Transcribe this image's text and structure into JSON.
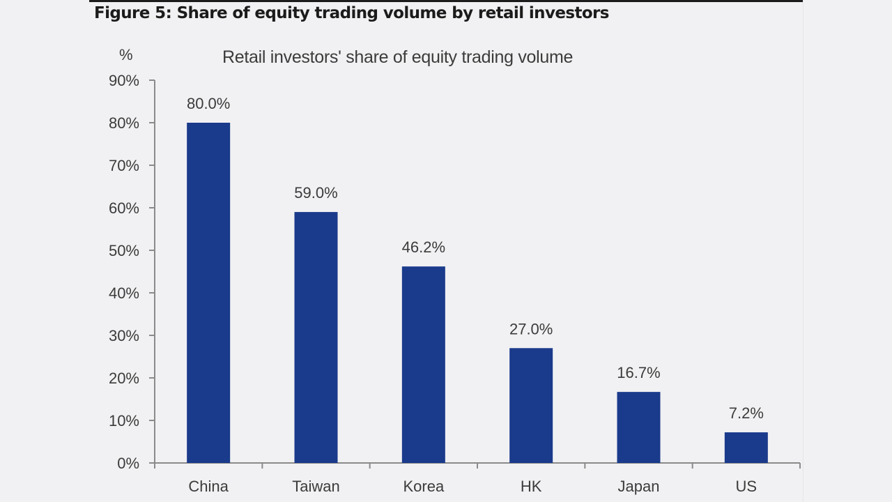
{
  "figure": {
    "title": "Figure 5: Share of equity trading volume by retail investors"
  },
  "chart_data": {
    "type": "bar",
    "title": "Retail investors' share of equity trading volume",
    "xlabel": "",
    "ylabel": "%",
    "categories": [
      "China",
      "Taiwan",
      "Korea",
      "HK",
      "Japan",
      "US"
    ],
    "values": [
      80.0,
      59.0,
      46.2,
      27.0,
      16.7,
      7.2
    ],
    "data_labels": [
      "80.0%",
      "59.0%",
      "46.2%",
      "27.0%",
      "16.7%",
      "7.2%"
    ],
    "ylim": [
      0,
      90
    ],
    "yticks": [
      0,
      10,
      20,
      30,
      40,
      50,
      60,
      70,
      80,
      90
    ],
    "ytick_labels": [
      "0%",
      "10%",
      "20%",
      "30%",
      "40%",
      "50%",
      "60%",
      "70%",
      "80%",
      "90%"
    ],
    "grid": false,
    "legend": null,
    "colors": {
      "bar": "#1a3a8b",
      "axis": "#8a8a8a",
      "text": "#3b3b3b",
      "background": "#f1f1f3"
    }
  }
}
